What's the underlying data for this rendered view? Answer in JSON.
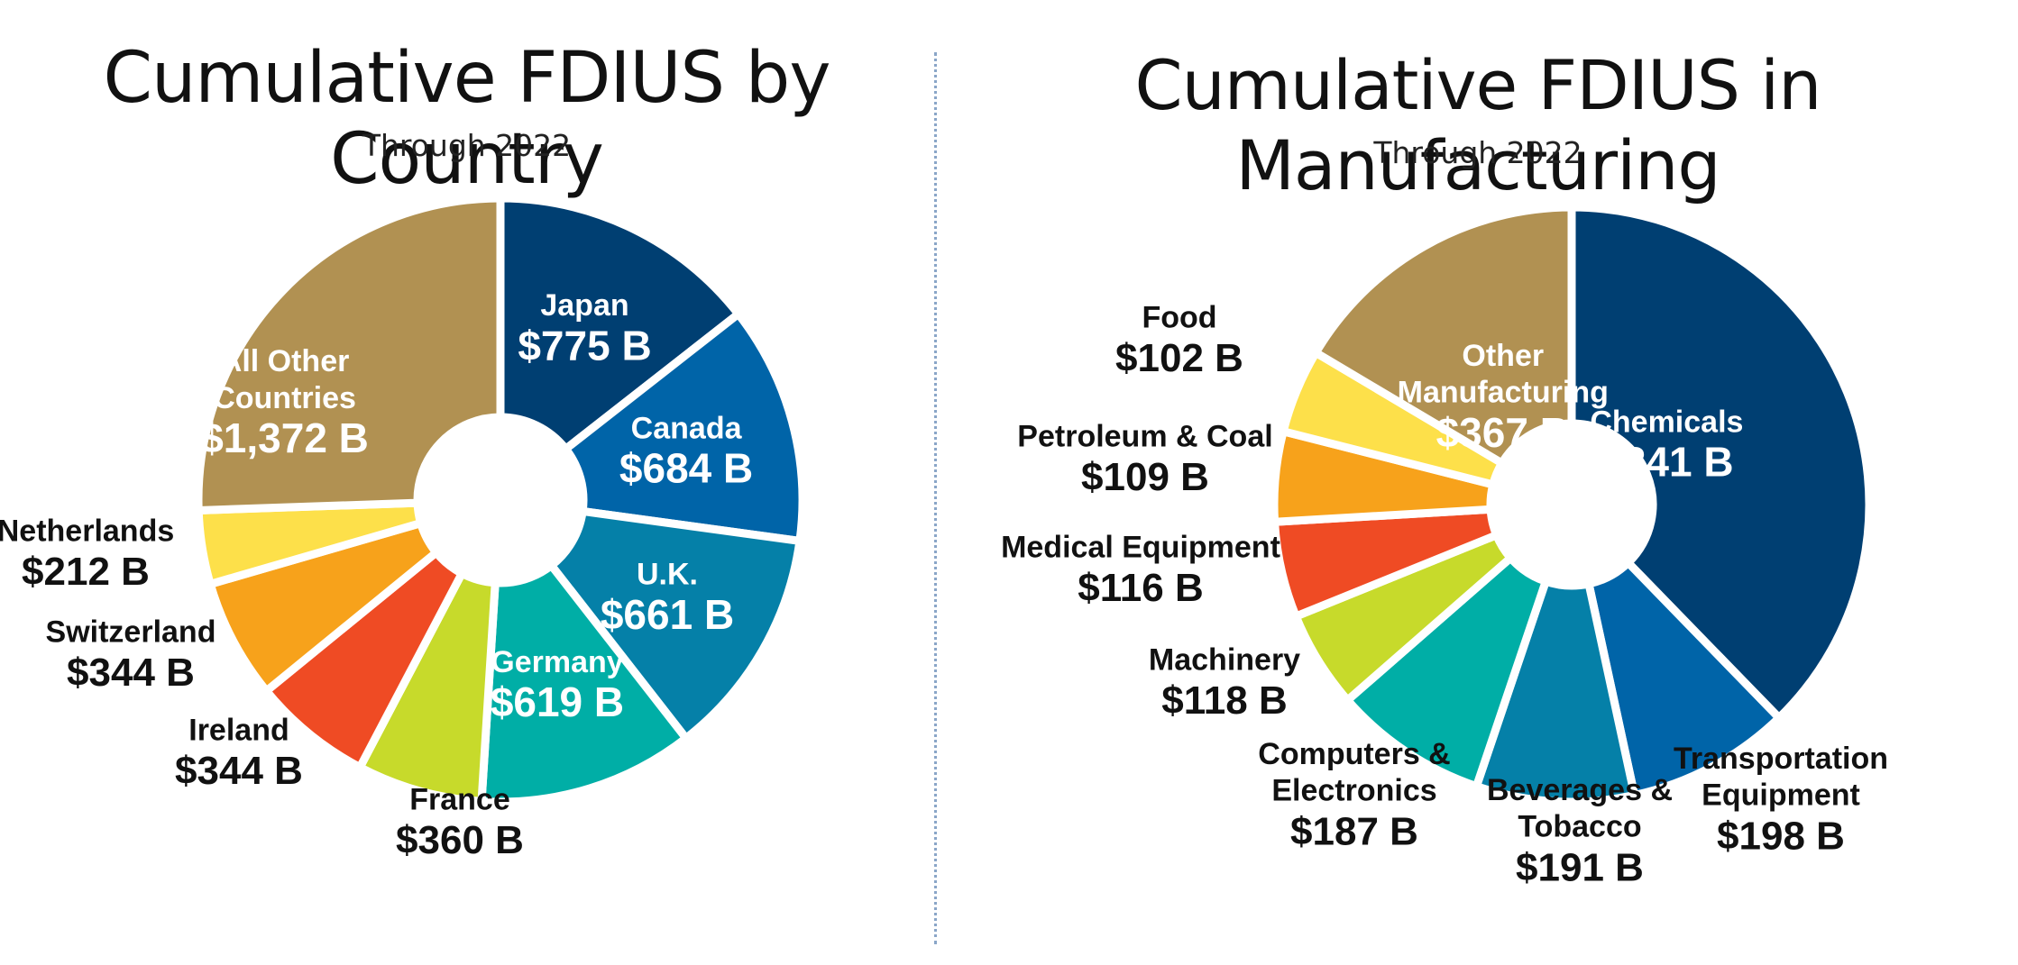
{
  "colors": {
    "divider": "#8aa6c8",
    "white": "#ffffff",
    "dark": "#111111"
  },
  "chart_data": [
    {
      "type": "pie",
      "variant": "donut",
      "title": "Cumulative FDIUS by Country",
      "subtitle": "Through 2022",
      "unit": "$ B",
      "slices": [
        {
          "label": "Japan",
          "value": 775,
          "value_label": "$775 B",
          "color": "#003f72"
        },
        {
          "label": "Canada",
          "value": 684,
          "value_label": "$684 B",
          "color": "#0064a8"
        },
        {
          "label": "U.K.",
          "value": 661,
          "value_label": "$661 B",
          "color": "#0580a8"
        },
        {
          "label": "Germany",
          "value": 619,
          "value_label": "$619 B",
          "color": "#00aea6"
        },
        {
          "label": "France",
          "value": 360,
          "value_label": "$360 B",
          "color": "#c7da2b"
        },
        {
          "label": "Ireland",
          "value": 344,
          "value_label": "$344 B",
          "color": "#ef4b24"
        },
        {
          "label": "Switzerland",
          "value": 344,
          "value_label": "$344 B",
          "color": "#f7a21b"
        },
        {
          "label": "Netherlands",
          "value": 212,
          "value_label": "$212 B",
          "color": "#fde04a"
        },
        {
          "label": "All Other Countries",
          "label_lines": [
            "All Other",
            "Countries"
          ],
          "value": 1372,
          "value_label": "$1,372 B",
          "color": "#b19152"
        }
      ]
    },
    {
      "type": "pie",
      "variant": "donut",
      "title": "Cumulative FDIUS in Manufacturing",
      "subtitle": "Through 2022",
      "unit": "$ B",
      "slices": [
        {
          "label": "Chemicals",
          "value": 841,
          "value_label": "$841 B",
          "color": "#003f72"
        },
        {
          "label": "Transportation Equipment",
          "label_lines": [
            "Transportation",
            "Equipment"
          ],
          "value": 198,
          "value_label": "$198 B",
          "color": "#0064a8"
        },
        {
          "label": "Beverages & Tobacco",
          "label_lines": [
            "Beverages &",
            "Tobacco"
          ],
          "value": 191,
          "value_label": "$191 B",
          "color": "#0580a8"
        },
        {
          "label": "Computers & Electronics",
          "label_lines": [
            "Computers &",
            "Electronics"
          ],
          "value": 187,
          "value_label": "$187 B",
          "color": "#00aea6"
        },
        {
          "label": "Machinery",
          "value": 118,
          "value_label": "$118 B",
          "color": "#c7da2b"
        },
        {
          "label": "Medical Equipment",
          "value": 116,
          "value_label": "$116 B",
          "color": "#ef4b24"
        },
        {
          "label": "Petroleum & Coal",
          "value": 109,
          "value_label": "$109 B",
          "color": "#f7a21b"
        },
        {
          "label": "Food",
          "value": 102,
          "value_label": "$102 B",
          "color": "#fde04a"
        },
        {
          "label": "Other Manufacturing",
          "label_lines": [
            "Other",
            "Manufacturing"
          ],
          "value": 367,
          "value_label": "$367 B",
          "color": "#b19152"
        }
      ]
    }
  ]
}
